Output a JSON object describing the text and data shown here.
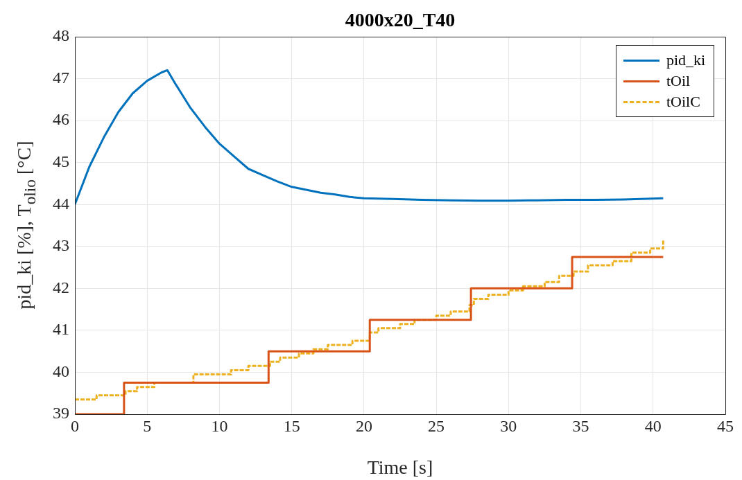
{
  "chart_data": {
    "type": "line",
    "title": "4000x20_T40",
    "xlabel": "Time [s]",
    "ylabel": "pid_ki [%], T$_{olio}$ [°C]",
    "xlim": [
      0,
      45
    ],
    "xticks": [
      0,
      5,
      10,
      15,
      20,
      25,
      30,
      35,
      40,
      45
    ],
    "ylim": [
      39,
      48
    ],
    "yticks": [
      39,
      40,
      41,
      42,
      43,
      44,
      45,
      46,
      47,
      48
    ],
    "grid": true,
    "legend": "top right",
    "marker": "none",
    "series": [
      {
        "name": "pid_ki",
        "color": "#0072bd",
        "type": "line",
        "line_style": "solid",
        "x": [
          0,
          1,
          2,
          3,
          4,
          5,
          6,
          6.4,
          7,
          8,
          9,
          10,
          11,
          12,
          13,
          14,
          15,
          16,
          17,
          18,
          19,
          20,
          22,
          24,
          26,
          28,
          30,
          32,
          34,
          36,
          38,
          40.7
        ],
        "values": [
          44.0,
          44.9,
          45.6,
          46.2,
          46.65,
          46.95,
          47.15,
          47.2,
          46.85,
          46.3,
          45.85,
          45.45,
          45.15,
          44.85,
          44.7,
          44.55,
          44.42,
          44.35,
          44.28,
          44.24,
          44.18,
          44.15,
          44.13,
          44.11,
          44.1,
          44.09,
          44.09,
          44.1,
          44.11,
          44.11,
          44.12,
          44.15
        ]
      },
      {
        "name": "tOil",
        "color": "#d95319",
        "type": "step",
        "line_style": "solid",
        "x": [
          0,
          3.4,
          13.4,
          20.4,
          27.4,
          34.4,
          40.7
        ],
        "values": [
          39,
          39.75,
          40.5,
          41.25,
          42,
          42.75,
          42.75
        ]
      },
      {
        "name": "tOilC",
        "color": "#edb120",
        "type": "step",
        "line_style": "dashed",
        "x": [
          0,
          1.5,
          3.5,
          4.3,
          5.5,
          8.2,
          10.8,
          12,
          13.5,
          14.2,
          15.5,
          16.5,
          17.5,
          19.2,
          20.4,
          21,
          22.5,
          23.5,
          25,
          26,
          27.3,
          27.6,
          28.6,
          30,
          31,
          32.5,
          33.5,
          34.5,
          35.5,
          37.2,
          38.5,
          39.8,
          40.7
        ],
        "values": [
          39.35,
          39.45,
          39.55,
          39.65,
          39.75,
          39.95,
          40.05,
          40.15,
          40.25,
          40.35,
          40.45,
          40.55,
          40.65,
          40.75,
          40.95,
          41.05,
          41.15,
          41.25,
          41.35,
          41.45,
          41.6,
          41.75,
          41.85,
          41.95,
          42.05,
          42.15,
          42.3,
          42.4,
          42.55,
          42.65,
          42.85,
          42.95,
          43.15
        ]
      }
    ]
  }
}
